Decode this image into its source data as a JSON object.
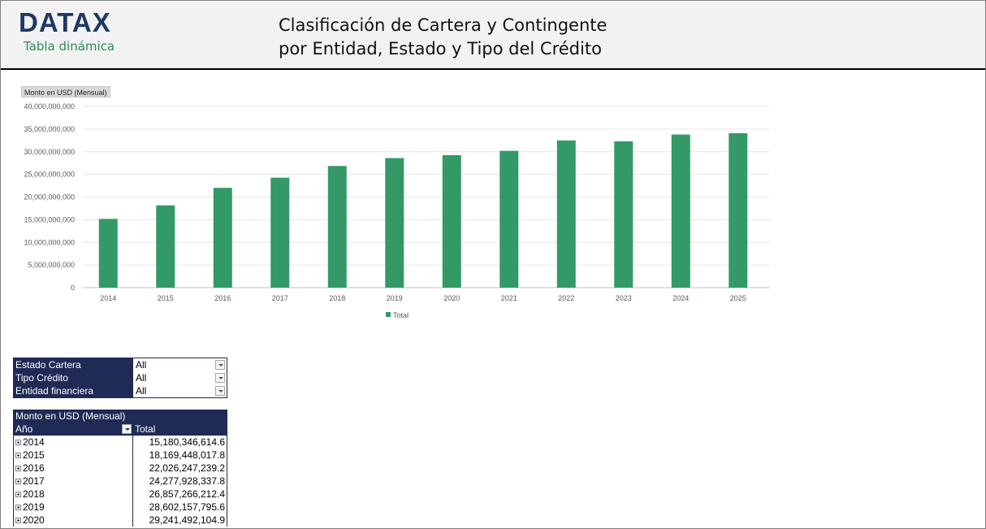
{
  "header": {
    "logo": "DATAX",
    "logo_subtitle": "Tabla dinámica",
    "title_line1": "Clasificación de Cartera y Contingente",
    "title_line2": "por Entidad, Estado y Tipo del Crédito"
  },
  "chart_field_button": "Monto en USD (Mensual)",
  "chart_data": {
    "type": "bar",
    "categories": [
      "2014",
      "2015",
      "2016",
      "2017",
      "2018",
      "2019",
      "2020",
      "2021",
      "2022",
      "2023",
      "2024",
      "2025"
    ],
    "series": [
      {
        "name": "Total",
        "values": [
          15180346614.6,
          18169448017.8,
          22026247239.2,
          24277928337.8,
          26857266212.4,
          28602157795.6,
          29241492104.9,
          30200000000,
          32500000000,
          32300000000,
          33800000000,
          34100000000
        ]
      }
    ],
    "y_ticks": [
      "0",
      "5,000,000,000",
      "10,000,000,000",
      "15,000,000,000",
      "20,000,000,000",
      "25,000,000,000",
      "30,000,000,000",
      "35,000,000,000",
      "40,000,000,000"
    ],
    "ylim": [
      0,
      40000000000
    ],
    "grid": true,
    "legend": "bottom",
    "bar_color": "#339966"
  },
  "filters": [
    {
      "label": "Estado Cartera",
      "value": "All"
    },
    {
      "label": "Tipo Crédito",
      "value": "All"
    },
    {
      "label": "Entidad financiera",
      "value": "All"
    }
  ],
  "pivot": {
    "measure": "Monto en USD (Mensual)",
    "row_header": "Año",
    "col_header": "Total",
    "rows": [
      {
        "year": "2014",
        "total": "15,180,346,614.6"
      },
      {
        "year": "2015",
        "total": "18,169,448,017.8"
      },
      {
        "year": "2016",
        "total": "22,026,247,239.2"
      },
      {
        "year": "2017",
        "total": "24,277,928,337.8"
      },
      {
        "year": "2018",
        "total": "26,857,266,212.4"
      },
      {
        "year": "2019",
        "total": "28,602,157,795.6"
      },
      {
        "year": "2020",
        "total": "29,241,492,104.9"
      }
    ]
  }
}
